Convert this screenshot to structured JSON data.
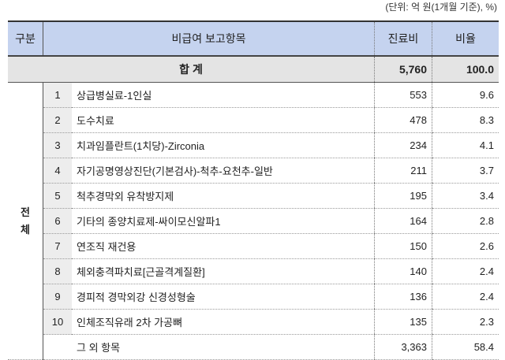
{
  "unit_note": "(단위: 억 원(1개월 기준), %)",
  "header": {
    "category": "구분",
    "item": "비급여 보고항목",
    "cost": "진료비",
    "ratio": "비율"
  },
  "total": {
    "label": "합 계",
    "cost": "5,760",
    "ratio": "100.0"
  },
  "group_label": "전체",
  "rows": [
    {
      "no": "1",
      "item": "상급병실료-1인실",
      "cost": "553",
      "ratio": "9.6"
    },
    {
      "no": "2",
      "item": "도수치료",
      "cost": "478",
      "ratio": "8.3"
    },
    {
      "no": "3",
      "item": "치과임플란트(1치당)-Zirconia",
      "cost": "234",
      "ratio": "4.1"
    },
    {
      "no": "4",
      "item": "자기공명영상진단(기본검사)-척추-요천추-일반",
      "cost": "211",
      "ratio": "3.7"
    },
    {
      "no": "5",
      "item": "척추경막외 유착방지제",
      "cost": "195",
      "ratio": "3.4"
    },
    {
      "no": "6",
      "item": "기타의 종양치료제-싸이모신알파1",
      "cost": "164",
      "ratio": "2.8"
    },
    {
      "no": "7",
      "item": "연조직 재건용",
      "cost": "150",
      "ratio": "2.6"
    },
    {
      "no": "8",
      "item": "체외충격파치료[근골격계질환]",
      "cost": "140",
      "ratio": "2.4"
    },
    {
      "no": "9",
      "item": "경피적 경막외강 신경성형술",
      "cost": "136",
      "ratio": "2.4"
    },
    {
      "no": "10",
      "item": "인체조직유래 2차 가공뼈",
      "cost": "135",
      "ratio": "2.3"
    }
  ],
  "other": {
    "item": "그 외 항목",
    "cost": "3,363",
    "ratio": "58.4"
  }
}
